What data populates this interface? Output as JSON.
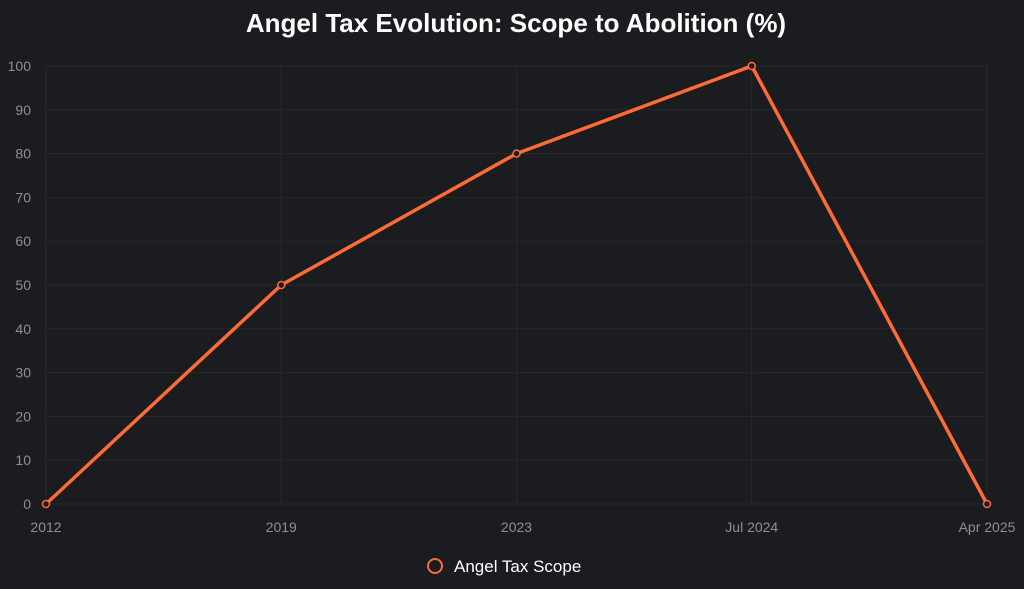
{
  "chart_data": {
    "type": "line",
    "title": "Angel Tax Evolution: Scope to Abolition (%)",
    "categories": [
      "2012",
      "2019",
      "2023",
      "Jul 2024",
      "Apr 2025"
    ],
    "series": [
      {
        "name": "Angel Tax Scope",
        "values": [
          0,
          50,
          80,
          100,
          0
        ],
        "color": "#ff6b35"
      }
    ],
    "ylim": [
      0,
      100
    ],
    "yticks": [
      "0",
      "10",
      "20",
      "30",
      "40",
      "50",
      "60",
      "70",
      "80",
      "90",
      "100"
    ],
    "grid": true,
    "legend_position": "bottom"
  },
  "colors": {
    "background": "#1b1c1f",
    "grid": "#26272b",
    "tick_text": "#8e8f94",
    "title_text": "#ffffff"
  }
}
